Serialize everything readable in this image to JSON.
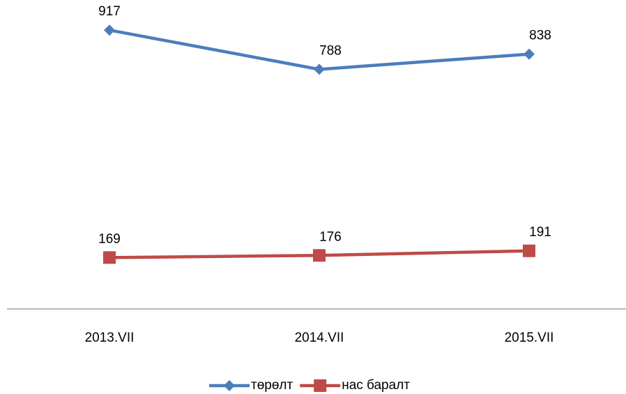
{
  "chart_data": {
    "type": "line",
    "categories": [
      "2013.VII",
      "2014.VII",
      "2015.VII"
    ],
    "series": [
      {
        "name": "төрөлт",
        "color": "#4a7ebb",
        "marker": "diamond",
        "values": [
          917,
          788,
          838
        ]
      },
      {
        "name": "нас баралт",
        "color": "#be4b48",
        "marker": "square",
        "values": [
          169,
          176,
          191
        ]
      }
    ],
    "ylim": [
      0,
      1000
    ],
    "legend": "bottom"
  }
}
